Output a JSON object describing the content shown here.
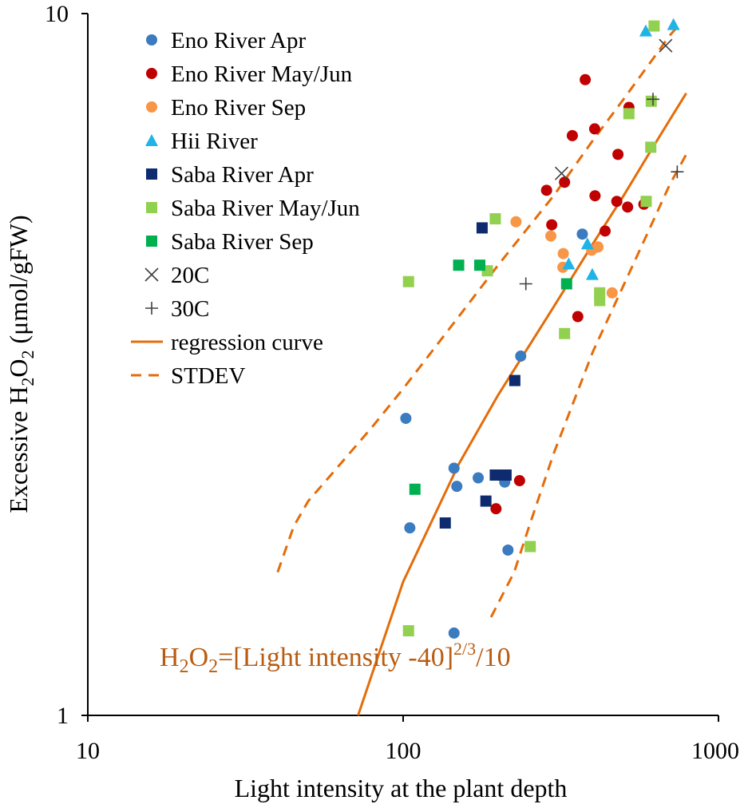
{
  "colors": {
    "eno_apr": "#3b7bbf",
    "eno_mayjun": "#c00000",
    "eno_sep": "#f79646",
    "hii": "#1fb4e8",
    "saba_apr": "#0d2b6e",
    "saba_mayjun": "#92d050",
    "saba_sep": "#00b050",
    "temp_marker": "#404040",
    "regression": "#e46c0a",
    "formula_text": "#b85c12",
    "axis": "#000000"
  },
  "chart_data": {
    "type": "scatter",
    "x_scale": "log",
    "y_scale": "log",
    "xlim": [
      10,
      1000
    ],
    "ylim": [
      1,
      10
    ],
    "x_ticks": [
      "10",
      "100",
      "1000"
    ],
    "y_ticks": [
      "1",
      "10"
    ],
    "xlabel": "Light  intensity  at the plant depth",
    "ylabel": {
      "prefix": "Excessive  H",
      "sub1": "2",
      "mid": "O",
      "sub2": "2",
      "suffix": " (μmol/gFW)"
    },
    "annotation": {
      "p1": "H",
      "s1": "2",
      "p2": "O",
      "s2": "2",
      "p3": "=[Light intensity -40]",
      "sup": "2/3",
      "p4": "/10"
    },
    "legend": [
      {
        "label": "Eno River Apr",
        "series": "eno_apr"
      },
      {
        "label": "Eno River May/Jun",
        "series": "eno_mayjun"
      },
      {
        "label": "Eno River Sep",
        "series": "eno_sep"
      },
      {
        "label": "Hii River",
        "series": "hii"
      },
      {
        "label": "Saba River Apr",
        "series": "saba_apr"
      },
      {
        "label": "Saba River May/Jun",
        "series": "saba_mayjun"
      },
      {
        "label": "Saba River Sep",
        "series": "saba_sep"
      },
      {
        "label": "20C",
        "series": "t20"
      },
      {
        "label": "30C",
        "series": "t30"
      },
      {
        "label": "regression curve",
        "series": "regression"
      },
      {
        "label": "STDEV",
        "series": "stdev"
      }
    ],
    "series": [
      {
        "id": "eno_apr",
        "name": "Eno River Apr",
        "marker": "circle",
        "color_key": "eno_apr",
        "points": [
          [
            102,
            2.65
          ],
          [
            105,
            1.85
          ],
          [
            145,
            2.25
          ],
          [
            148,
            2.12
          ],
          [
            173,
            2.18
          ],
          [
            210,
            2.15
          ],
          [
            215,
            1.72
          ],
          [
            236,
            3.25
          ],
          [
            370,
            4.85
          ],
          [
            145,
            1.31
          ]
        ]
      },
      {
        "id": "eno_mayjun",
        "name": "Eno River May/Jun",
        "marker": "circle",
        "color_key": "eno_mayjun",
        "points": [
          [
            378,
            8.05
          ],
          [
            405,
            6.85
          ],
          [
            344,
            6.7
          ],
          [
            480,
            6.3
          ],
          [
            520,
            7.35
          ],
          [
            580,
            5.35
          ],
          [
            325,
            5.75
          ],
          [
            285,
            5.6
          ],
          [
            406,
            5.5
          ],
          [
            476,
            5.4
          ],
          [
            515,
            5.3
          ],
          [
            296,
            5.0
          ],
          [
            437,
            4.9
          ],
          [
            358,
            3.7
          ],
          [
            234,
            2.16
          ],
          [
            197,
            1.97
          ]
        ]
      },
      {
        "id": "eno_sep",
        "name": "Eno River Sep",
        "marker": "circle",
        "color_key": "eno_sep",
        "points": [
          [
            228,
            5.05
          ],
          [
            294,
            4.82
          ],
          [
            322,
            4.55
          ],
          [
            415,
            4.65
          ],
          [
            396,
            4.6
          ],
          [
            321,
            4.35
          ],
          [
            460,
            4.0
          ]
        ]
      },
      {
        "id": "hii",
        "name": "Hii River",
        "marker": "triangle",
        "color_key": "hii",
        "points": [
          [
            588,
            9.45
          ],
          [
            720,
            9.65
          ],
          [
            384,
            4.7
          ],
          [
            335,
            4.4
          ],
          [
            398,
            4.25
          ]
        ]
      },
      {
        "id": "saba_apr",
        "name": "Saba River Apr",
        "marker": "square",
        "color_key": "saba_apr",
        "points": [
          [
            178,
            4.95
          ],
          [
            226,
            3.0
          ],
          [
            196,
            2.2
          ],
          [
            212,
            2.2
          ],
          [
            183,
            2.02
          ],
          [
            136,
            1.88
          ]
        ]
      },
      {
        "id": "saba_mayjun",
        "name": "Saba River May/Jun",
        "marker": "square",
        "color_key": "saba_mayjun",
        "points": [
          [
            625,
            9.6
          ],
          [
            612,
            7.5
          ],
          [
            520,
            7.2
          ],
          [
            610,
            6.45
          ],
          [
            590,
            5.4
          ],
          [
            196,
            5.1
          ],
          [
            185,
            4.3
          ],
          [
            104,
            4.15
          ],
          [
            420,
            4.0
          ],
          [
            420,
            3.9
          ],
          [
            325,
            3.5
          ],
          [
            253,
            1.74
          ],
          [
            104,
            1.32
          ]
        ]
      },
      {
        "id": "saba_sep",
        "name": "Saba River Sep",
        "marker": "square",
        "color_key": "saba_sep",
        "points": [
          [
            150,
            4.38
          ],
          [
            175,
            4.38
          ],
          [
            330,
            4.12
          ],
          [
            109,
            2.1
          ]
        ]
      },
      {
        "id": "t20",
        "name": "20C",
        "marker": "x",
        "color_key": "temp_marker",
        "points": [
          [
            680,
            9.0
          ],
          [
            318,
            5.92
          ]
        ]
      },
      {
        "id": "t30",
        "name": "30C",
        "marker": "plus",
        "color_key": "temp_marker",
        "points": [
          [
            620,
            7.55
          ],
          [
            740,
            5.95
          ],
          [
            245,
            4.12
          ]
        ]
      }
    ],
    "curves": [
      {
        "id": "regression",
        "name": "regression curve",
        "style": "solid",
        "color_key": "regression",
        "points": [
          [
            72,
            1.0
          ],
          [
            100,
            1.55
          ],
          [
            150,
            2.28
          ],
          [
            200,
            2.86
          ],
          [
            300,
            3.82
          ],
          [
            400,
            4.7
          ],
          [
            500,
            5.5
          ],
          [
            600,
            6.3
          ],
          [
            700,
            7.05
          ],
          [
            790,
            7.7
          ]
        ]
      },
      {
        "id": "stdev_upper",
        "name": "STDEV",
        "style": "dashed",
        "color_key": "regression",
        "points": [
          [
            40,
            1.6
          ],
          [
            45,
            1.86
          ],
          [
            50,
            2.02
          ],
          [
            60,
            2.22
          ],
          [
            80,
            2.58
          ],
          [
            100,
            2.92
          ],
          [
            150,
            3.7
          ],
          [
            200,
            4.38
          ],
          [
            300,
            5.5
          ],
          [
            400,
            6.6
          ],
          [
            500,
            7.55
          ],
          [
            600,
            8.45
          ],
          [
            700,
            9.3
          ],
          [
            760,
            9.7
          ]
        ]
      },
      {
        "id": "stdev_lower",
        "name": "STDEV",
        "style": "dashed",
        "color_key": "regression",
        "points": [
          [
            190,
            1.38
          ],
          [
            225,
            1.6
          ],
          [
            250,
            1.85
          ],
          [
            300,
            2.36
          ],
          [
            400,
            3.3
          ],
          [
            500,
            4.1
          ],
          [
            600,
            4.9
          ],
          [
            700,
            5.7
          ],
          [
            790,
            6.3
          ]
        ]
      }
    ]
  }
}
